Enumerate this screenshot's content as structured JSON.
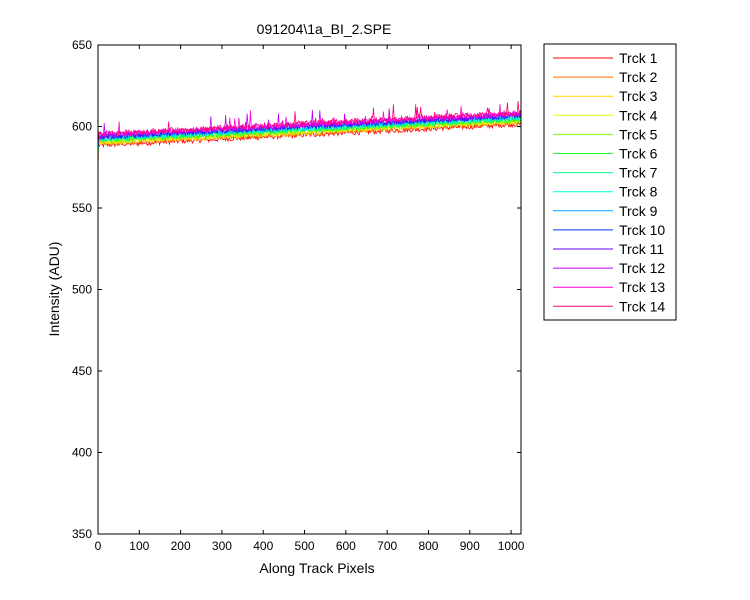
{
  "chart_data": {
    "type": "line",
    "title": "091204\\1a_BI_2.SPE",
    "xlabel": "Along Track Pixels",
    "ylabel": "Intensity (ADU)",
    "xlim": [
      0,
      1024
    ],
    "ylim": [
      350,
      650
    ],
    "xticks": [
      0,
      100,
      200,
      300,
      400,
      500,
      600,
      700,
      800,
      900,
      1000
    ],
    "yticks": [
      350,
      400,
      450,
      500,
      550,
      600,
      650
    ],
    "grid": false,
    "legend_position": "outside-right",
    "series": [
      {
        "name": "Trck 1",
        "color": "#ff0000",
        "start": 588.5,
        "end": 601.5,
        "first": 570
      },
      {
        "name": "Trck 2",
        "color": "#ff6a00",
        "start": 589.5,
        "end": 602.5,
        "first": 574
      },
      {
        "name": "Trck 3",
        "color": "#ffd200",
        "start": 590.0,
        "end": 603.0,
        "first": 576
      },
      {
        "name": "Trck 4",
        "color": "#d8ff00",
        "start": 590.5,
        "end": 603.5,
        "first": 577
      },
      {
        "name": "Trck 5",
        "color": "#7cff00",
        "start": 591.0,
        "end": 604.0,
        "first": 578
      },
      {
        "name": "Trck 6",
        "color": "#1eff2a",
        "start": 591.5,
        "end": 604.5,
        "first": 579
      },
      {
        "name": "Trck 7",
        "color": "#00ff8a",
        "start": 592.0,
        "end": 605.0,
        "first": 580
      },
      {
        "name": "Trck 8",
        "color": "#00ffe0",
        "start": 592.5,
        "end": 605.5,
        "first": 581
      },
      {
        "name": "Trck 9",
        "color": "#00a8ff",
        "start": 593.0,
        "end": 606.0,
        "first": 582
      },
      {
        "name": "Trck 10",
        "color": "#0030ff",
        "start": 593.5,
        "end": 606.5,
        "first": 583
      },
      {
        "name": "Trck 11",
        "color": "#5a00ff",
        "start": 594.0,
        "end": 607.0,
        "first": 584
      },
      {
        "name": "Trck 12",
        "color": "#c000ff",
        "start": 594.5,
        "end": 607.5,
        "first": 585
      },
      {
        "name": "Trck 13",
        "color": "#ff00d8",
        "start": 595.0,
        "end": 608.0,
        "first": 586
      },
      {
        "name": "Trck 14",
        "color": "#ff0078",
        "start": 595.5,
        "end": 608.5,
        "first": 587
      }
    ]
  }
}
